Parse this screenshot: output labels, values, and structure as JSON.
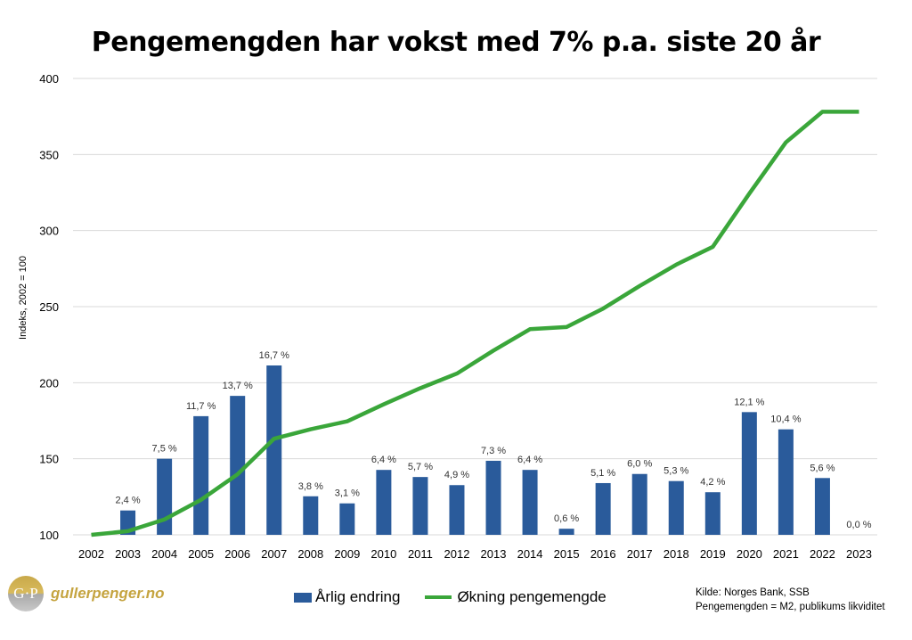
{
  "title": "Pengemengden har vokst med 7% p.a. siste 20 år",
  "logo": {
    "mark": "G·P",
    "text": "gullerpenger.no"
  },
  "source": [
    "Kilde: Norges Bank, SSB",
    "Pengemengden = M2, publikums likviditet"
  ],
  "colors": {
    "bar": "#2a5b9b",
    "line": "#3aa63a",
    "grid": "#d9d9d9"
  },
  "chart_data": {
    "type": "bar+line",
    "title": "Pengemengden har vokst med 7% p.a. siste 20 år",
    "ylabel": "Indeks, 2002 = 100",
    "ylim": [
      100,
      400
    ],
    "yticks": [
      100,
      150,
      200,
      250,
      300,
      350,
      400
    ],
    "grid": true,
    "legend_position": "bottom",
    "categories": [
      "2002",
      "2003",
      "2004",
      "2005",
      "2006",
      "2007",
      "2008",
      "2009",
      "2010",
      "2011",
      "2012",
      "2013",
      "2014",
      "2015",
      "2016",
      "2017",
      "2018",
      "2019",
      "2020",
      "2021",
      "2022",
      "2023"
    ],
    "series": [
      {
        "name": "Årlig endring",
        "type": "bar",
        "unit": "%",
        "secondary_axis_hidden": true,
        "secondary_ylim": [
          0,
          45
        ],
        "values": [
          null,
          2.4,
          7.5,
          11.7,
          13.7,
          16.7,
          3.8,
          3.1,
          6.4,
          5.7,
          4.9,
          7.3,
          6.4,
          0.6,
          5.1,
          6.0,
          5.3,
          4.2,
          12.1,
          10.4,
          5.6,
          0.0
        ],
        "labels": [
          "",
          "2,4 %",
          "7,5 %",
          "11,7 %",
          "13,7 %",
          "16,7 %",
          "3,8 %",
          "3,1 %",
          "6,4 %",
          "5,7 %",
          "4,9 %",
          "7,3 %",
          "6,4 %",
          "0,6 %",
          "5,1 %",
          "6,0 %",
          "5,3 %",
          "4,2 %",
          "12,1 %",
          "10,4 %",
          "5,6 %",
          "0,0 %"
        ]
      },
      {
        "name": "Økning pengemengde",
        "type": "line",
        "values": [
          100,
          102.4,
          110.1,
          123.0,
          139.8,
          163.2,
          169.4,
          174.6,
          185.8,
          196.4,
          206.0,
          221.1,
          235.2,
          236.6,
          248.7,
          263.6,
          277.6,
          289.3,
          324.3,
          358.0,
          378.1,
          378.1
        ]
      }
    ]
  }
}
